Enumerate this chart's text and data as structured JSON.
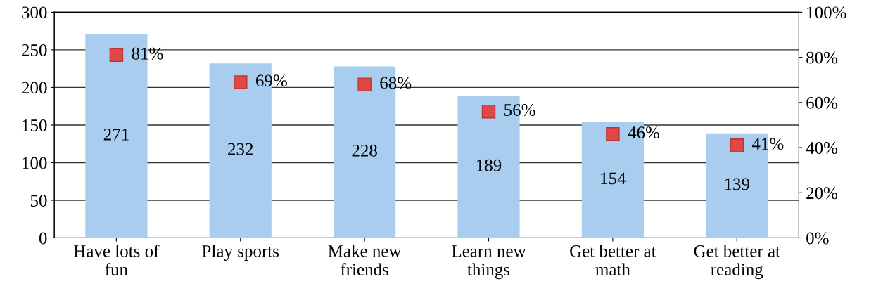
{
  "chart_data": {
    "type": "bar",
    "categories": [
      "Have lots of\nfun",
      "Play sports",
      "Make new\nfriends",
      "Learn new\nthings",
      "Get better at\nmath",
      "Get better at\nreading"
    ],
    "series": [
      {
        "color": "#a8cdee",
        "values": [
          271,
          232,
          228,
          189,
          154,
          139
        ],
        "value_labels": [
          "271",
          "232",
          "228",
          "189",
          "154",
          "139"
        ]
      },
      {
        "type": "scatter",
        "axis": "y2",
        "marker": "square",
        "color": "#e04848",
        "values": [
          81,
          69,
          68,
          56,
          46,
          41
        ],
        "value_labels": [
          "81%",
          "69%",
          "68%",
          "56%",
          "46%",
          "41%"
        ]
      }
    ],
    "ylim": [
      0,
      300
    ],
    "yticks": [
      0,
      50,
      100,
      150,
      200,
      250,
      300
    ],
    "y2lim": [
      0,
      100
    ],
    "y2ticks": [
      {
        "value": 0,
        "label": "0%"
      },
      {
        "value": 20,
        "label": "20%"
      },
      {
        "value": 40,
        "label": "40%"
      },
      {
        "value": 60,
        "label": "60%"
      },
      {
        "value": 80,
        "label": "80%"
      },
      {
        "value": 100,
        "label": "100%"
      }
    ],
    "grid": "y",
    "legend": false
  }
}
